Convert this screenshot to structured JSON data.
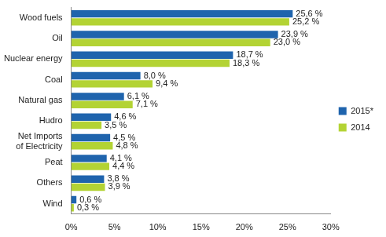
{
  "chart_data": {
    "type": "bar",
    "orientation": "horizontal",
    "categories": [
      "Wood fuels",
      "Oil",
      "Nuclear energy",
      "Coal",
      "Natural gas",
      "Hudro",
      "Net Imports of Electricity",
      "Peat",
      "Others",
      "Wind"
    ],
    "series": [
      {
        "name": "2015*",
        "color": "#1f64ad",
        "values": [
          25.6,
          23.9,
          18.7,
          8.0,
          6.1,
          4.6,
          4.5,
          4.1,
          3.8,
          0.6
        ],
        "value_labels": [
          "25,6 %",
          "23,9 %",
          "18,7 %",
          "8,0 %",
          "6,1 %",
          "4,6 %",
          "4,5 %",
          "4,1 %",
          "3,8 %",
          "0,6 %"
        ]
      },
      {
        "name": "2014",
        "color": "#b3d334",
        "values": [
          25.2,
          23.0,
          18.3,
          9.4,
          7.1,
          3.5,
          4.8,
          4.4,
          3.9,
          0.3
        ],
        "value_labels": [
          "25,2 %",
          "23,0 %",
          "18,3 %",
          "9,4 %",
          "7,1 %",
          "3,5 %",
          "4,8 %",
          "4,4 %",
          "3,9 %",
          "0,3 %"
        ]
      }
    ],
    "xlim": [
      0,
      30
    ],
    "xticks": [
      {
        "value": 0,
        "label": "0%"
      },
      {
        "value": 5,
        "label": "5%"
      },
      {
        "value": 10,
        "label": "10%"
      },
      {
        "value": 15,
        "label": "15%"
      },
      {
        "value": 20,
        "label": "20%"
      },
      {
        "value": 25,
        "label": "25%"
      },
      {
        "value": 30,
        "label": "30%"
      }
    ],
    "grid": false,
    "legend": "right",
    "data_labels": true
  }
}
